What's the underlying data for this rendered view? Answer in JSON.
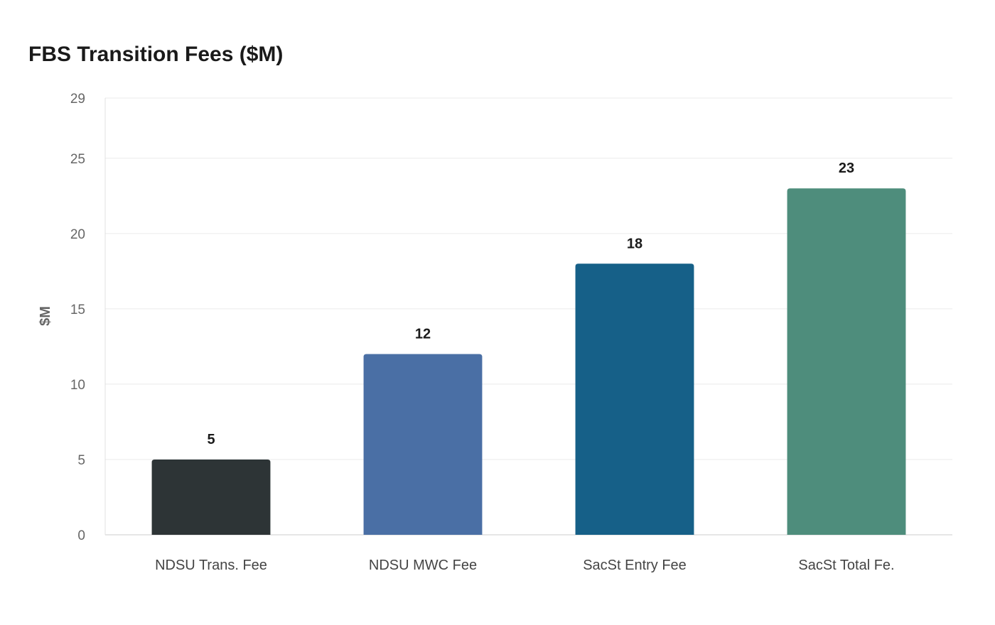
{
  "chart_data": {
    "type": "bar",
    "title": "FBS Transition Fees ($M)",
    "xlabel": "",
    "ylabel": "$M",
    "ylim": [
      0,
      29
    ],
    "yticks": [
      0,
      5,
      10,
      15,
      20,
      25,
      29
    ],
    "grid": true,
    "categories": [
      "NDSU Trans. Fee",
      "NDSU MWC Fee",
      "SacSt Entry Fee",
      "SacSt Total Fe."
    ],
    "values": [
      5,
      12,
      18,
      23
    ],
    "colors": [
      "#2d3436",
      "#4a6fa5",
      "#166088",
      "#4e8d7c"
    ]
  }
}
